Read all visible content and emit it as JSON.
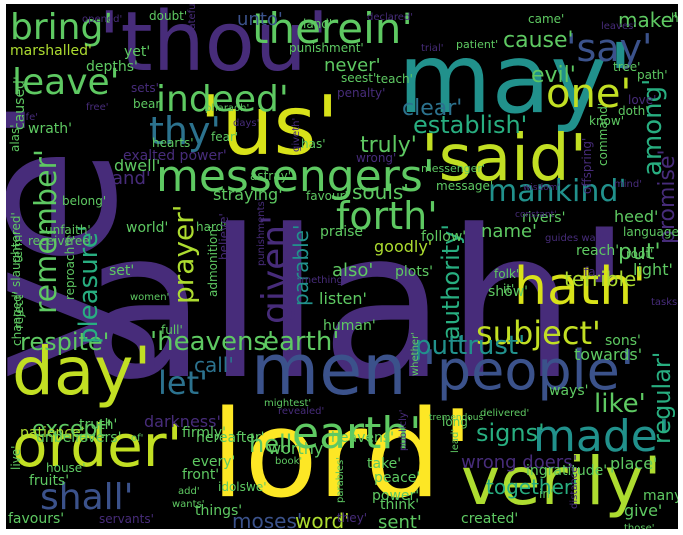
{
  "word_cloud": {
    "background": "#000000",
    "palette": {
      "purple": "#472c7a",
      "indigo": "#3b528b",
      "blue": "#2c728e",
      "teal": "#21918c",
      "green": "#28ae80",
      "lime": "#5ec962",
      "yellowgreen": "#addc30",
      "yellow": "#fde725",
      "darkpurple": "#3e0751"
    },
    "words": [
      {
        "text": "allah'",
        "color": "#472c7a"
      },
      {
        "text": "ye'",
        "color": "#472c7a"
      },
      {
        "text": "lord'",
        "color": "#fde725"
      },
      {
        "text": "may'",
        "color": "#21918c"
      },
      {
        "text": "'thou'",
        "color": "#472c7a"
      },
      {
        "text": "'us'",
        "color": "#d8e219"
      },
      {
        "text": "'said'",
        "color": "#c2df23"
      },
      {
        "text": "men'",
        "color": "#3b528b"
      },
      {
        "text": "day'",
        "color": "#c2df23"
      },
      {
        "text": "'people'",
        "color": "#3b528b"
      },
      {
        "text": "verily'",
        "color": "#addc30"
      },
      {
        "text": "order'",
        "color": "#c2df23"
      },
      {
        "text": "hath'",
        "color": "#d8e219"
      },
      {
        "text": "messengers'",
        "color": "#5ec962"
      },
      {
        "text": "earth'",
        "color": "#5ec962"
      },
      {
        "text": "made'",
        "color": "#21918c"
      },
      {
        "text": "therein'",
        "color": "#5ec962"
      },
      {
        "text": "bring'",
        "color": "#5ec962"
      },
      {
        "text": "'say'",
        "color": "#3b528b"
      },
      {
        "text": "one'",
        "color": "#c2df23"
      },
      {
        "text": "leave'",
        "color": "#5ec962"
      },
      {
        "text": "indeed'",
        "color": "#5ec962"
      },
      {
        "text": "thy'",
        "color": "#2c728e"
      },
      {
        "text": "forth'",
        "color": "#5ec962"
      },
      {
        "text": "mankind'",
        "color": "#21918c"
      },
      {
        "text": "remember'",
        "color": "#5ec962"
      },
      {
        "text": "given'",
        "color": "#472c7a"
      },
      {
        "text": "prayer'",
        "color": "#addc30"
      },
      {
        "text": "subject'",
        "color": "#c2df23"
      },
      {
        "text": "'heavens'",
        "color": "#5ec962"
      },
      {
        "text": "earth'",
        "color": "#5ec962"
      },
      {
        "text": "put'",
        "color": "#21918c"
      },
      {
        "text": "trust'",
        "color": "#21918c"
      },
      {
        "text": "let'",
        "color": "#2c728e"
      },
      {
        "text": "shall'",
        "color": "#3b528b"
      },
      {
        "text": "respite'",
        "color": "#5ec962"
      },
      {
        "text": "pleasure'",
        "color": "#28ae80"
      },
      {
        "text": "signs'",
        "color": "#28ae80"
      },
      {
        "text": "like'",
        "color": "#5ec962"
      },
      {
        "text": "regular'",
        "color": "#28ae80"
      },
      {
        "text": "authority'",
        "color": "#28ae80"
      },
      {
        "text": "among'",
        "color": "#28ae80"
      },
      {
        "text": "promise'",
        "color": "#472c7a"
      },
      {
        "text": "establish'",
        "color": "#28ae80"
      },
      {
        "text": "clear'",
        "color": "#2c728e"
      },
      {
        "text": "truly'",
        "color": "#5ec962"
      },
      {
        "text": "evil'",
        "color": "#5ec962"
      },
      {
        "text": "cause'",
        "color": "#5ec962"
      },
      {
        "text": "make'",
        "color": "#5ec962"
      },
      {
        "text": "unto'",
        "color": "#3b528b"
      },
      {
        "text": "never'",
        "color": "#5ec962"
      },
      {
        "text": "and'",
        "color": "#472c7a"
      },
      {
        "text": "hell'",
        "color": "#5ec962"
      },
      {
        "text": "except'",
        "color": "#5ec962"
      },
      {
        "text": "call'",
        "color": "#2c728e"
      },
      {
        "text": "also'",
        "color": "#5ec962"
      },
      {
        "text": "parable'",
        "color": "#21918c"
      },
      {
        "text": "name'",
        "color": "#5ec962"
      },
      {
        "text": "put'",
        "color": "#5ec962"
      },
      {
        "text": "word'",
        "color": "#addc30"
      },
      {
        "text": "moses'",
        "color": "#3b528b"
      },
      {
        "text": "sent'",
        "color": "#5ec962"
      },
      {
        "text": "together'",
        "color": "#28ae80"
      },
      {
        "text": "wrong doers'",
        "color": "#472c7a"
      },
      {
        "text": "exalted power'",
        "color": "#472c7a"
      },
      {
        "text": "souls'",
        "color": "#5ec962"
      },
      {
        "text": "dwell'",
        "color": "#5ec962"
      },
      {
        "text": "hearts'",
        "color": "#5ec962"
      },
      {
        "text": "fear'",
        "color": "#5ec962"
      },
      {
        "text": "straying'",
        "color": "#5ec962"
      },
      {
        "text": "favour'",
        "color": "#5ec962"
      },
      {
        "text": "goodly'",
        "color": "#addc30"
      },
      {
        "text": "follow'",
        "color": "#5ec962"
      },
      {
        "text": "praise'",
        "color": "#5ec962"
      },
      {
        "text": "heed'",
        "color": "#5ec962"
      },
      {
        "text": "reach'",
        "color": "#5ec962"
      },
      {
        "text": "light'",
        "color": "#5ec962"
      },
      {
        "text": "terrible'",
        "color": "#addc30"
      },
      {
        "text": "listen'",
        "color": "#5ec962"
      },
      {
        "text": "human'",
        "color": "#5ec962"
      },
      {
        "text": "show'",
        "color": "#5ec962"
      },
      {
        "text": "sons'",
        "color": "#5ec962"
      },
      {
        "text": "towards'",
        "color": "#5ec962"
      },
      {
        "text": "ways'",
        "color": "#5ec962"
      },
      {
        "text": "heavens'",
        "color": "#5ec962"
      },
      {
        "text": "hereafter'",
        "color": "#5ec962"
      },
      {
        "text": "patience'",
        "color": "#addc30"
      },
      {
        "text": "unbelievers'",
        "color": "#5ec962"
      },
      {
        "text": "truth'",
        "color": "#5ec962"
      },
      {
        "text": "darkness'",
        "color": "#472c7a"
      },
      {
        "text": "worthy'",
        "color": "#5ec962"
      },
      {
        "text": "firmly'",
        "color": "#5ec962"
      },
      {
        "text": "house'",
        "color": "#5ec962"
      },
      {
        "text": "fruits'",
        "color": "#5ec962"
      },
      {
        "text": "favours'",
        "color": "#5ec962"
      },
      {
        "text": "servants'",
        "color": "#472c7a"
      },
      {
        "text": "things'",
        "color": "#5ec962"
      },
      {
        "text": "idols'",
        "color": "#5ec962"
      },
      {
        "text": "front'",
        "color": "#5ec962"
      },
      {
        "text": "every'",
        "color": "#5ec962"
      },
      {
        "text": "take'",
        "color": "#5ec962"
      },
      {
        "text": "peace'",
        "color": "#5ec962"
      },
      {
        "text": "power'",
        "color": "#5ec962"
      },
      {
        "text": "think'",
        "color": "#5ec962"
      },
      {
        "text": "created'",
        "color": "#5ec962"
      },
      {
        "text": "give'",
        "color": "#5ec962"
      },
      {
        "text": "many'",
        "color": "#5ec962"
      },
      {
        "text": "place'",
        "color": "#5ec962"
      },
      {
        "text": "ingratitude'",
        "color": "#5ec962"
      },
      {
        "text": "marshalled'",
        "color": "#addc30"
      },
      {
        "text": "yet'",
        "color": "#5ec962"
      },
      {
        "text": "depths'",
        "color": "#5ec962"
      },
      {
        "text": "caused'",
        "color": "#5ec962"
      },
      {
        "text": "wrath'",
        "color": "#5ec962"
      },
      {
        "text": "bear'",
        "color": "#5ec962"
      },
      {
        "text": "sets'",
        "color": "#472c7a"
      },
      {
        "text": "seest'",
        "color": "#5ec962"
      },
      {
        "text": "teach'",
        "color": "#5ec962"
      },
      {
        "text": "penalty'",
        "color": "#472c7a"
      },
      {
        "text": "punishment'",
        "color": "#5ec962"
      },
      {
        "text": "land'",
        "color": "#5ec962"
      },
      {
        "text": "came'",
        "color": "#5ec962"
      },
      {
        "text": "hinder'",
        "color": "#5ec962"
      },
      {
        "text": "doubt'",
        "color": "#5ec962"
      },
      {
        "text": "patient'",
        "color": "#5ec962"
      },
      {
        "text": "tree'",
        "color": "#5ec962"
      },
      {
        "text": "path'",
        "color": "#5ec962"
      },
      {
        "text": "love'",
        "color": "#472c7a"
      },
      {
        "text": "doth'",
        "color": "#5ec962"
      },
      {
        "text": "know'",
        "color": "#5ec962"
      },
      {
        "text": "command'",
        "color": "#5ec962"
      },
      {
        "text": "offspring'",
        "color": "#472c7a"
      },
      {
        "text": "message'",
        "color": "#5ec962"
      },
      {
        "text": "wisdom'",
        "color": "#472c7a"
      },
      {
        "text": "mind'",
        "color": "#472c7a"
      },
      {
        "text": "rivers'",
        "color": "#5ec962"
      },
      {
        "text": "constant'",
        "color": "#472c7a"
      },
      {
        "text": "language'",
        "color": "#5ec962"
      },
      {
        "text": "guides way'",
        "color": "#472c7a"
      },
      {
        "text": "far'",
        "color": "#472c7a"
      },
      {
        "text": "root'",
        "color": "#5ec962"
      },
      {
        "text": "tasks'",
        "color": "#472c7a"
      },
      {
        "text": "folk'",
        "color": "#5ec962"
      },
      {
        "text": "it'",
        "color": "#5ec962"
      },
      {
        "text": "plots'",
        "color": "#5ec962"
      },
      {
        "text": "something'",
        "color": "#472c7a"
      },
      {
        "text": "women'",
        "color": "#5ec962"
      },
      {
        "text": "set'",
        "color": "#5ec962"
      },
      {
        "text": "reproach'",
        "color": "#5ec962"
      },
      {
        "text": "world'",
        "color": "#5ec962"
      },
      {
        "text": "hard'",
        "color": "#5ec962"
      },
      {
        "text": "believe'",
        "color": "#472c7a"
      },
      {
        "text": "admonition'",
        "color": "#5ec962"
      },
      {
        "text": "punishments'",
        "color": "#472c7a"
      },
      {
        "text": "mightest'",
        "color": "#5ec962"
      },
      {
        "text": "revealed'",
        "color": "#472c7a"
      },
      {
        "text": "messenger'",
        "color": "#5ec962"
      },
      {
        "text": "astray'",
        "color": "#5ec962"
      },
      {
        "text": "wrong'",
        "color": "#472c7a"
      },
      {
        "text": "has'",
        "color": "#5ec962"
      },
      {
        "text": "giveth'",
        "color": "#472c7a"
      },
      {
        "text": "pharaoh'",
        "color": "#5ec962"
      },
      {
        "text": "days'",
        "color": "#472c7a"
      },
      {
        "text": "grateful'",
        "color": "#472c7a"
      },
      {
        "text": "unfaith'",
        "color": "#5ec962"
      },
      {
        "text": "belong'",
        "color": "#5ec962"
      },
      {
        "text": "free'",
        "color": "#5ec962"
      },
      {
        "text": "receive'",
        "color": "#5ec962"
      },
      {
        "text": "term'",
        "color": "#5ec962"
      },
      {
        "text": "reject'",
        "color": "#5ec962"
      },
      {
        "text": "changed'",
        "color": "#5ec962"
      },
      {
        "text": "live'",
        "color": "#5ec962"
      },
      {
        "text": "full'",
        "color": "#5ec962"
      },
      {
        "text": "slaughtered'",
        "color": "#5ec962"
      },
      {
        "text": "alas'",
        "color": "#5ec962"
      },
      {
        "text": "life'",
        "color": "#472c7a"
      },
      {
        "text": "book'",
        "color": "#5ec962"
      },
      {
        "text": "add'",
        "color": "#5ec962"
      },
      {
        "text": "wants'",
        "color": "#5ec962"
      },
      {
        "text": "we'",
        "color": "#5ec962"
      },
      {
        "text": "of'",
        "color": "#5ec962"
      },
      {
        "text": "parables'",
        "color": "#5ec962"
      },
      {
        "text": "they'",
        "color": "#472c7a"
      },
      {
        "text": "those'",
        "color": "#5ec962"
      },
      {
        "text": "in'",
        "color": "#5ec962"
      },
      {
        "text": "long'",
        "color": "#5ec962"
      },
      {
        "text": "lead'",
        "color": "#5ec962"
      },
      {
        "text": "distance'",
        "color": "#472c7a"
      },
      {
        "text": "publicly'",
        "color": "#472c7a"
      },
      {
        "text": "whether'",
        "color": "#5ec962"
      },
      {
        "text": "delivered'",
        "color": "#5ec962"
      },
      {
        "text": "tremendous'",
        "color": "#5ec962"
      },
      {
        "text": "declared'",
        "color": "#472c7a"
      },
      {
        "text": "leaves'",
        "color": "#472c7a"
      },
      {
        "text": "trial'",
        "color": "#472c7a"
      },
      {
        "text": "free'",
        "color": "#472c7a"
      },
      {
        "text": "opened'",
        "color": "#472c7a"
      }
    ]
  }
}
